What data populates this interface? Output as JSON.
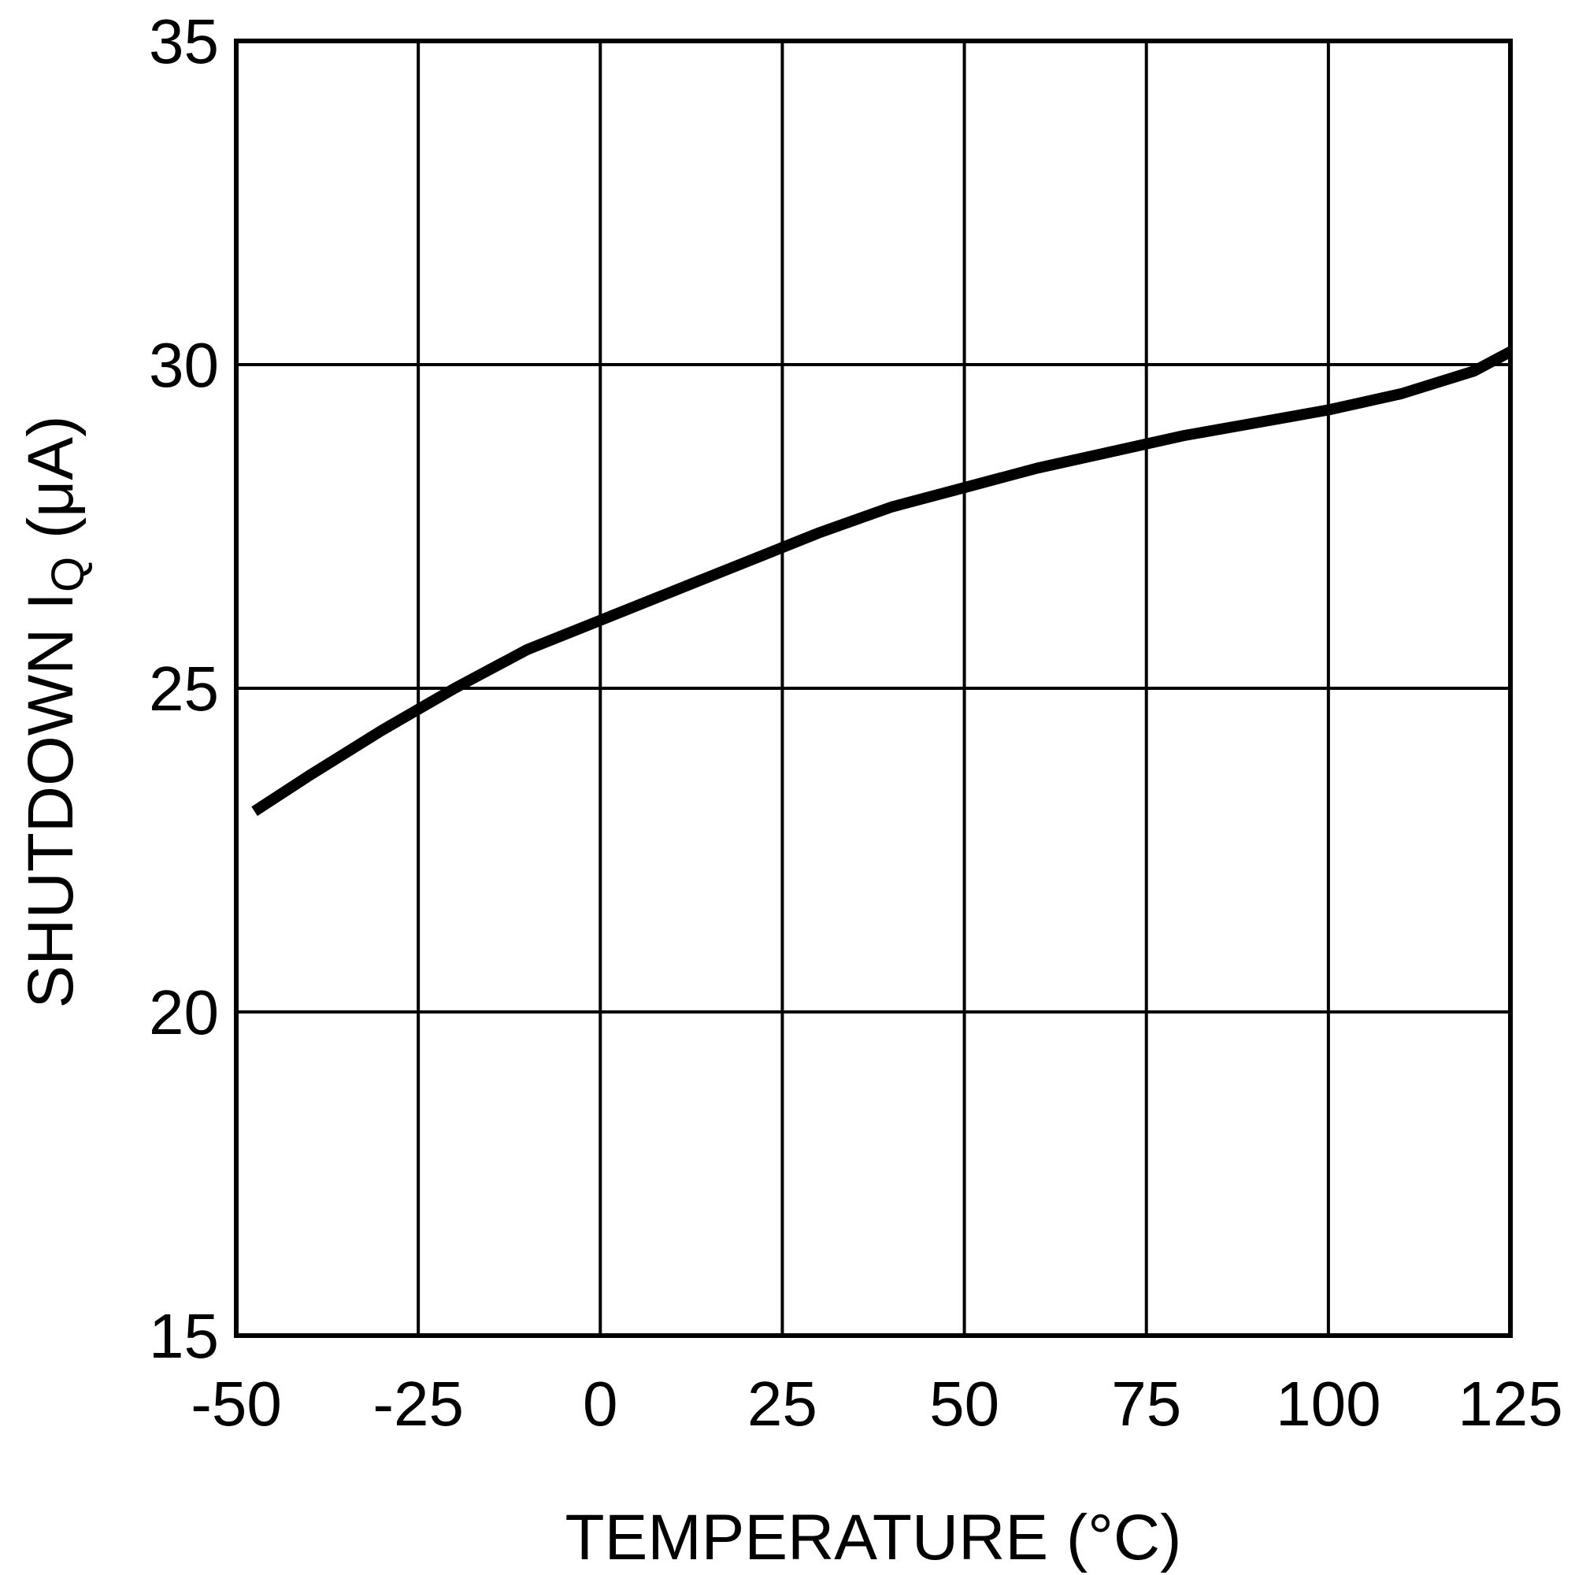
{
  "chart_data": {
    "type": "line",
    "title": "",
    "xlabel": "TEMPERATURE (°C)",
    "ylabel": {
      "main": "SHUTDOWN I",
      "subscript": "Q",
      "unit": " (μA)"
    },
    "xlim": [
      -50,
      125
    ],
    "ylim": [
      15,
      35
    ],
    "x_ticks": [
      -50,
      -25,
      0,
      25,
      50,
      75,
      100,
      125
    ],
    "y_ticks": [
      15,
      20,
      25,
      30,
      35
    ],
    "x_tick_labels": [
      "-50",
      "-25",
      "0",
      "25",
      "50",
      "75",
      "100",
      "125"
    ],
    "y_tick_labels": [
      "15",
      "20",
      "25",
      "30",
      "35"
    ],
    "grid": true,
    "legend": "none",
    "series": [
      {
        "color": "#000000",
        "x": [
          -47.5,
          -40,
          -30,
          -20,
          -10,
          0,
          10,
          20,
          30,
          40,
          50,
          60,
          70,
          80,
          90,
          100,
          110,
          120,
          125
        ],
        "y": [
          23.1,
          23.65,
          24.35,
          25.0,
          25.6,
          26.05,
          26.5,
          26.95,
          27.4,
          27.8,
          28.1,
          28.4,
          28.65,
          28.9,
          29.1,
          29.3,
          29.55,
          29.9,
          30.2
        ]
      }
    ]
  }
}
